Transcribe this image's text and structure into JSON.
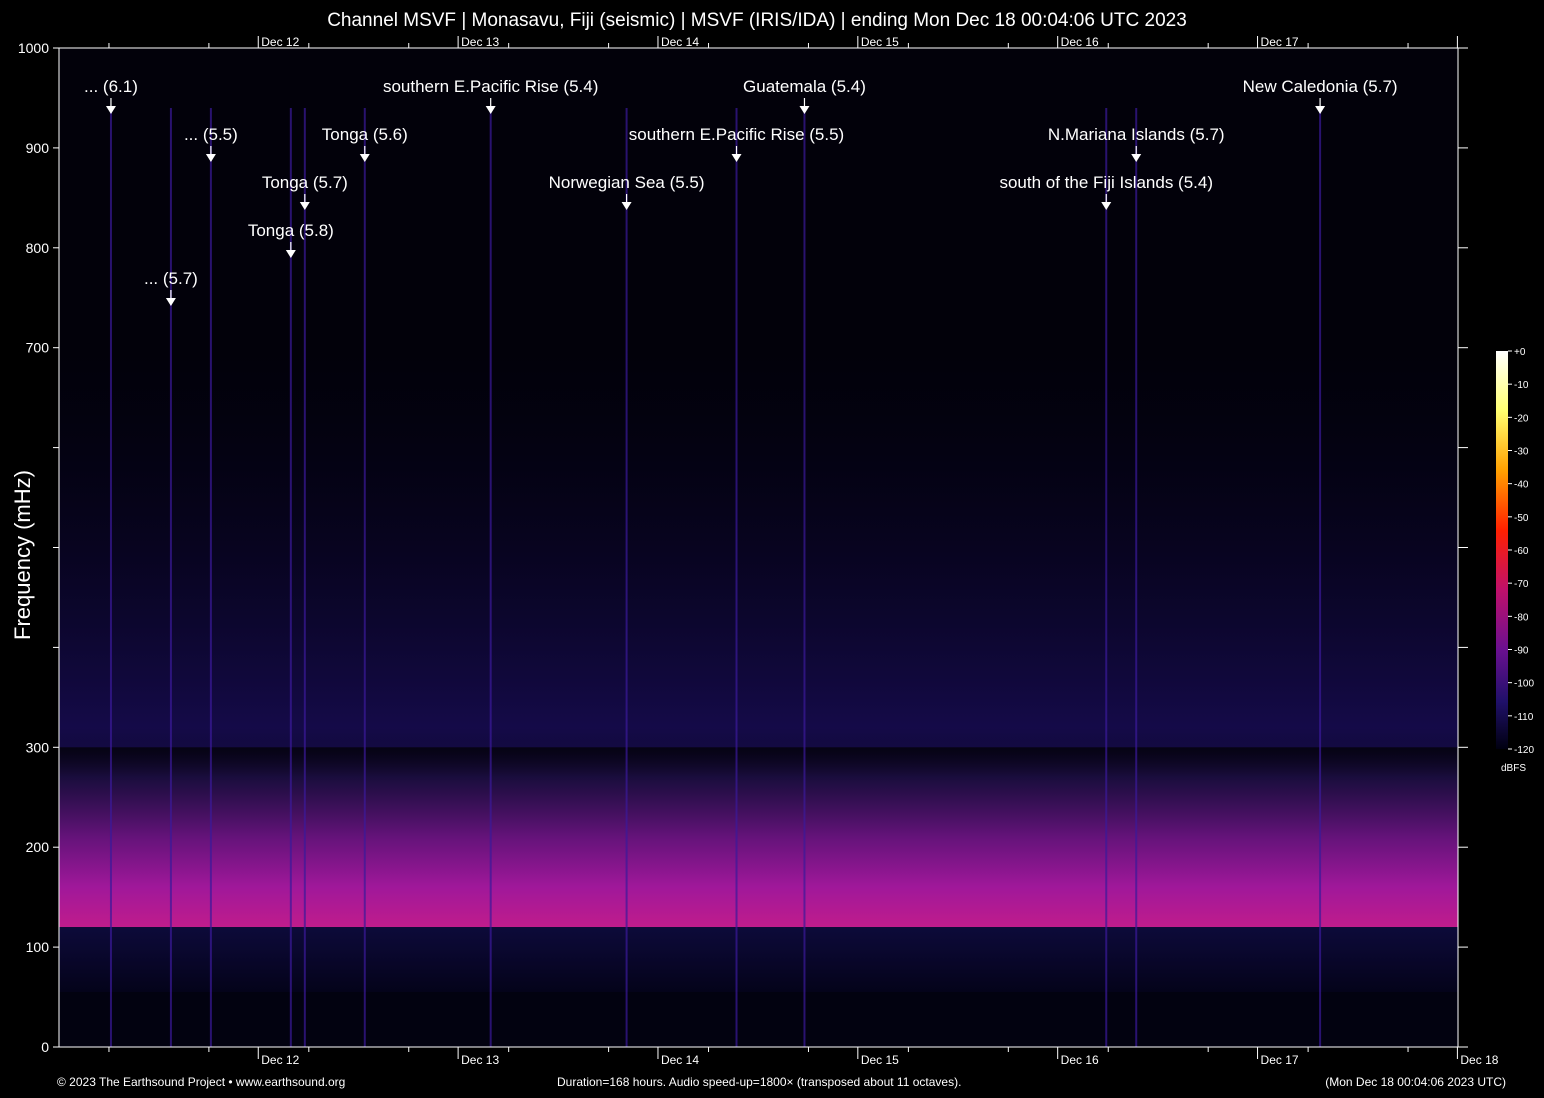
{
  "header": {
    "title": "Channel MSVF | Monasavu, Fiji (seismic) | MSVF (IRIS/IDA) | ending Mon Dec 18 00:04:06 UTC 2023"
  },
  "footer": {
    "left": "© 2023 The Earthsound Project • www.earthsound.org",
    "center": "Duration=168 hours. Audio speed-up=1800× (transposed about 11 octaves).",
    "right": "(Mon Dec 18 00:04:06 2023 UTC)"
  },
  "colors": {
    "background": "#000000",
    "noise_band": "#c81c8c",
    "event_line": "#d03070",
    "axis": "#ffffff"
  },
  "chart_data": {
    "type": "heatmap",
    "title": "Channel MSVF | Monasavu, Fiji (seismic) | MSVF (IRIS/IDA) | ending Mon Dec 18 00:04:06 UTC 2023",
    "ylabel": "Frequency (mHz)",
    "xlabel": "",
    "ylim": [
      0,
      1000
    ],
    "y_ticks": [
      0,
      100,
      200,
      300,
      400,
      500,
      600,
      700,
      800,
      900,
      1000
    ],
    "y_tick_labels": [
      "0",
      "100",
      "200",
      "300",
      "",
      "",
      "",
      "700",
      "800",
      "900",
      "1000"
    ],
    "x_range_days": [
      "Dec 11 00:04",
      "Dec 18 00:04"
    ],
    "x_ticks": [
      {
        "label": "Dec 12",
        "day": 0.997
      },
      {
        "label": "Dec 13",
        "day": 1.997
      },
      {
        "label": "Dec 14",
        "day": 2.997
      },
      {
        "label": "Dec 15",
        "day": 3.997
      },
      {
        "label": "Dec 16",
        "day": 4.997
      },
      {
        "label": "Dec 17",
        "day": 5.997
      },
      {
        "label": "Dec 18",
        "day": 6.997
      }
    ],
    "colorbar": {
      "label": "dBFS",
      "ticks": [
        "+0",
        "-10",
        "-20",
        "-30",
        "-40",
        "-50",
        "-60",
        "-70",
        "-80",
        "-90",
        "-100",
        "-110",
        "-120"
      ]
    },
    "noise_band_mHz": [
      120,
      260
    ],
    "events": [
      {
        "label": "... (6.1)",
        "day": 0.26
      },
      {
        "label": "... (5.7)",
        "day": 0.56
      },
      {
        "label": "... (5.5)",
        "day": 0.76
      },
      {
        "label": "Tonga (5.8)",
        "day": 1.16
      },
      {
        "label": "Tonga (5.7)",
        "day": 1.23
      },
      {
        "label": "Tonga (5.6)",
        "day": 1.53
      },
      {
        "label": "southern E.Pacific Rise (5.4)",
        "day": 2.16
      },
      {
        "label": "Norwegian Sea (5.5)",
        "day": 2.84
      },
      {
        "label": "southern E.Pacific Rise (5.5)",
        "day": 3.39
      },
      {
        "label": "Guatemala (5.4)",
        "day": 3.73
      },
      {
        "label": "south of the Fiji Islands (5.4)",
        "day": 5.24
      },
      {
        "label": "N.Mariana Islands (5.7)",
        "day": 5.39
      },
      {
        "label": "New Caledonia (5.7)",
        "day": 6.31
      }
    ]
  }
}
